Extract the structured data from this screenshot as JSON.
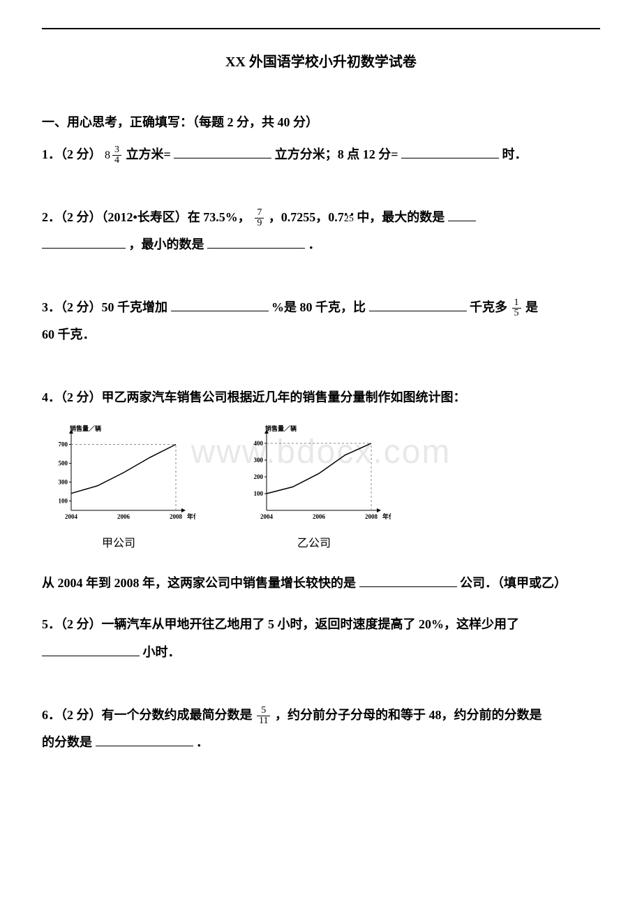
{
  "title": "XX 外国语学校小升初数学试卷",
  "section1": {
    "header": "一、用心思考，正确填写：（每题 2 分，共 40 分）"
  },
  "q1": {
    "prefix": "1．（2 分）",
    "mixed_whole": "8",
    "mixed_num": "3",
    "mixed_den": "4",
    "t1": "立方米=",
    "t2": "立方分米；8 点 12 分=",
    "t3": "时．"
  },
  "q2": {
    "prefix": "2．（2 分）（2012•长寿区）在 73.5%，",
    "frac_num": "7",
    "frac_den": "9",
    "t1": "，0.7255，0.7",
    "recurring_digits": "25",
    "t2": "中，最大的数是",
    "t3": "，最小的数是",
    "t4": "．"
  },
  "q3": {
    "prefix": "3．（2 分）50 千克增加",
    "t1": "%是 80 千克，比",
    "t2": "千克多",
    "frac_num": "1",
    "frac_den": "5",
    "t3": "是",
    "t4": "60 千克．"
  },
  "q4": {
    "prefix": "4．（2 分）甲乙两家汽车销售公司根据近几年的销售量分量制作如图统计图：",
    "chart_a": {
      "ylabel": "销售量／辆",
      "xlabel": "年份",
      "caption": "甲公司",
      "xticks": [
        "2004",
        "2006",
        "2008"
      ],
      "yticks": [
        100,
        300,
        500,
        700
      ],
      "ylim": [
        0,
        800
      ],
      "points": [
        {
          "x": 2004,
          "y": 180
        },
        {
          "x": 2005,
          "y": 260
        },
        {
          "x": 2006,
          "y": 400
        },
        {
          "x": 2007,
          "y": 560
        },
        {
          "x": 2008,
          "y": 700
        }
      ],
      "target_x": 2008,
      "target_y": 700,
      "line_color": "#000000",
      "dash_color": "#888888",
      "bg": "#ffffff"
    },
    "chart_b": {
      "ylabel": "销售量／辆",
      "xlabel": "年份",
      "caption": "乙公司",
      "xticks": [
        "2004",
        "2006",
        "2008"
      ],
      "yticks": [
        100,
        200,
        300,
        400
      ],
      "ylim": [
        0,
        450
      ],
      "points": [
        {
          "x": 2004,
          "y": 100
        },
        {
          "x": 2005,
          "y": 140
        },
        {
          "x": 2006,
          "y": 220
        },
        {
          "x": 2007,
          "y": 330
        },
        {
          "x": 2008,
          "y": 400
        }
      ],
      "target_x": 2008,
      "target_y": 400,
      "line_color": "#000000",
      "dash_color": "#888888",
      "bg": "#ffffff"
    },
    "after1": "从 2004 年到 2008 年，这两家公司中销售量增长较快的是",
    "after2": "公司．（填甲或乙）"
  },
  "q5": {
    "prefix": "5．（2 分）一辆汽车从甲地开往乙地用了 5 小时，返回时速度提高了 20%，这样少用了",
    "t1": "小时．"
  },
  "q6": {
    "prefix": "6．（2 分）有一个分数约成最简分数是",
    "frac_num": "5",
    "frac_den": "11",
    "t1": "，约分前分子分母的和等于 48，约分前的分数是",
    "t2": "．"
  },
  "watermark": "www.bdocx.com"
}
